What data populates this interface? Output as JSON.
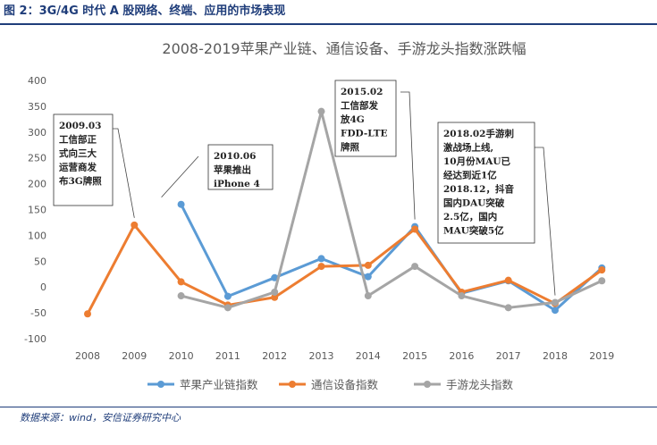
{
  "figure": {
    "caption": "图 2：3G/4G 时代 A 股网络、终端、应用的市场表现",
    "source": "数据来源：wind，安信证券研究中心"
  },
  "chart_data": {
    "type": "line",
    "title": "2008-2019苹果产业链、通信设备、手游龙头指数涨跌幅",
    "xlabel": "",
    "ylabel": "",
    "categories": [
      "2008",
      "2009",
      "2010",
      "2011",
      "2012",
      "2013",
      "2014",
      "2015",
      "2016",
      "2017",
      "2018",
      "2019"
    ],
    "ylim": [
      -100,
      400
    ],
    "yticks": [
      -100,
      -50,
      0,
      50,
      100,
      150,
      200,
      250,
      300,
      350,
      400
    ],
    "grid": false,
    "legend_position": "bottom",
    "series": [
      {
        "name": "苹果产业链指数",
        "color": "#5b9bd5",
        "values": [
          null,
          null,
          160,
          -18,
          18,
          55,
          20,
          117,
          -12,
          12,
          -45,
          37
        ]
      },
      {
        "name": "通信设备指数",
        "color": "#ed7d31",
        "values": [
          -52,
          120,
          10,
          -35,
          -20,
          40,
          42,
          112,
          -10,
          13,
          -32,
          33
        ]
      },
      {
        "name": "手游龙头指数",
        "color": "#a5a5a5",
        "values": [
          null,
          null,
          -17,
          -40,
          -10,
          340,
          -17,
          40,
          -17,
          -40,
          -30,
          12
        ]
      }
    ],
    "annotations": [
      {
        "lines": [
          "2009.03",
          "工信部正",
          "式向三大",
          "运营商发",
          "布3G牌照"
        ],
        "target": [
          "2009",
          120
        ]
      },
      {
        "lines": [
          "2010.06",
          "苹果推出",
          "iPhone 4"
        ],
        "target": [
          "2010",
          160
        ]
      },
      {
        "lines": [
          "2015.02",
          "工信部发",
          "放4G",
          "FDD-LTE",
          "牌照"
        ],
        "target": [
          "2015",
          117
        ]
      },
      {
        "lines": [
          "2018.02手游刺",
          "激战场上线,",
          "10月份MAU已",
          "经达到近1亿",
          "2018.12，抖音",
          "国内DAU突破",
          "2.5亿，国内",
          "MAU突破5亿"
        ],
        "target": [
          "2018",
          -30
        ]
      }
    ]
  }
}
